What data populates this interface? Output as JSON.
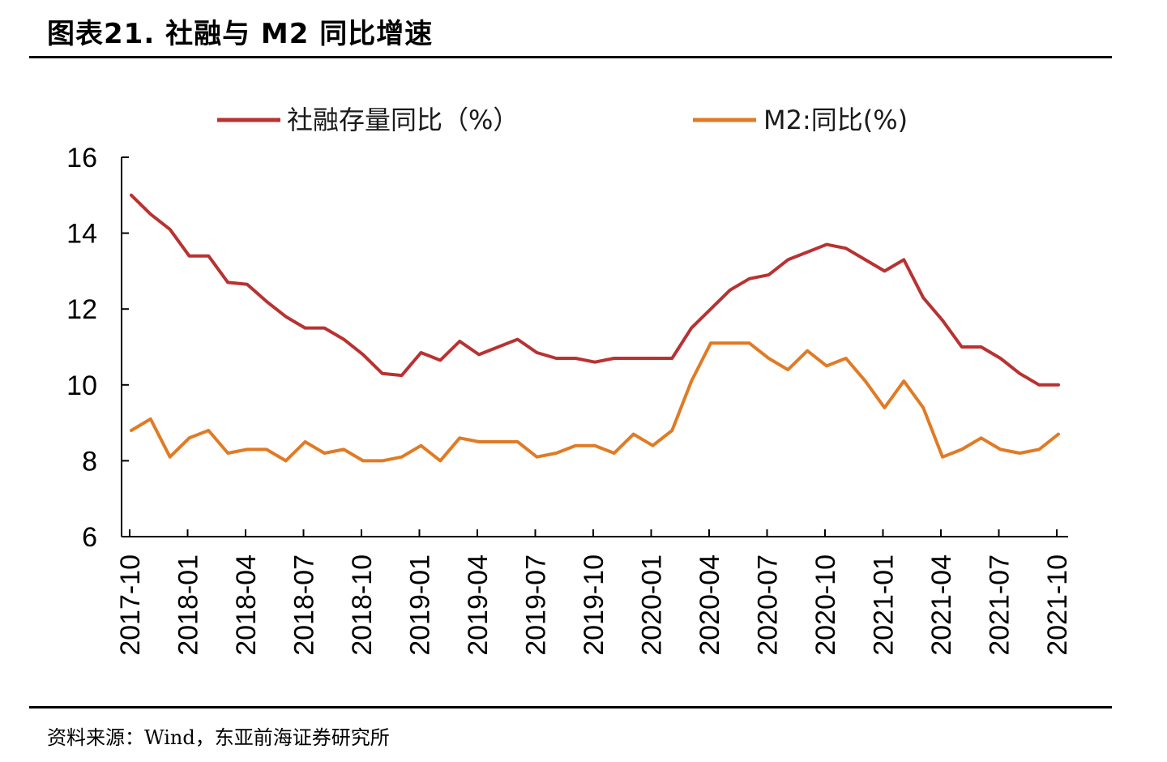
{
  "figure": {
    "title": "图表21.   社融与 M2 同比增速",
    "source": "资料来源：Wind，东亚前海证券研究所"
  },
  "chart_data": {
    "type": "line",
    "x": [
      "2017-10",
      "2017-11",
      "2017-12",
      "2018-01",
      "2018-02",
      "2018-03",
      "2018-04",
      "2018-05",
      "2018-06",
      "2018-07",
      "2018-08",
      "2018-09",
      "2018-10",
      "2018-11",
      "2018-12",
      "2019-01",
      "2019-02",
      "2019-03",
      "2019-04",
      "2019-05",
      "2019-06",
      "2019-07",
      "2019-08",
      "2019-09",
      "2019-10",
      "2019-11",
      "2019-12",
      "2020-01",
      "2020-02",
      "2020-03",
      "2020-04",
      "2020-05",
      "2020-06",
      "2020-07",
      "2020-08",
      "2020-09",
      "2020-10",
      "2020-11",
      "2020-12",
      "2021-01",
      "2021-02",
      "2021-03",
      "2021-04",
      "2021-05",
      "2021-06",
      "2021-07",
      "2021-08",
      "2021-09",
      "2021-10"
    ],
    "xticks": [
      "2017-10",
      "2018-01",
      "2018-04",
      "2018-07",
      "2018-10",
      "2019-01",
      "2019-04",
      "2019-07",
      "2019-10",
      "2020-01",
      "2020-04",
      "2020-07",
      "2020-10",
      "2021-01",
      "2021-04",
      "2021-07",
      "2021-10"
    ],
    "yticks": [
      "6",
      "8",
      "10",
      "12",
      "14",
      "16"
    ],
    "ylim": [
      6,
      16
    ],
    "series": [
      {
        "name": "社融存量同比（%）",
        "color": "#b83232",
        "values": [
          15.0,
          14.5,
          14.1,
          13.4,
          13.4,
          12.7,
          12.65,
          12.2,
          11.8,
          11.5,
          11.5,
          11.2,
          10.8,
          10.3,
          10.25,
          10.85,
          10.65,
          11.15,
          10.8,
          11.0,
          11.2,
          10.85,
          10.7,
          10.7,
          10.6,
          10.7,
          10.7,
          10.7,
          10.7,
          11.5,
          12.0,
          12.5,
          12.8,
          12.9,
          13.3,
          13.5,
          13.7,
          13.6,
          13.3,
          13.0,
          13.3,
          12.3,
          11.7,
          11.0,
          11.0,
          10.7,
          10.3,
          10.0,
          10.0
        ]
      },
      {
        "name": "M2:同比(%)",
        "color": "#e07b25",
        "values": [
          8.8,
          9.1,
          8.1,
          8.6,
          8.8,
          8.2,
          8.3,
          8.3,
          8.0,
          8.5,
          8.2,
          8.3,
          8.0,
          8.0,
          8.1,
          8.4,
          8.0,
          8.6,
          8.5,
          8.5,
          8.5,
          8.1,
          8.2,
          8.4,
          8.4,
          8.2,
          8.7,
          8.4,
          8.8,
          10.1,
          11.1,
          11.1,
          11.1,
          10.7,
          10.4,
          10.9,
          10.5,
          10.7,
          10.1,
          9.4,
          10.1,
          9.4,
          8.1,
          8.3,
          8.6,
          8.3,
          8.2,
          8.3,
          8.7
        ]
      }
    ]
  }
}
